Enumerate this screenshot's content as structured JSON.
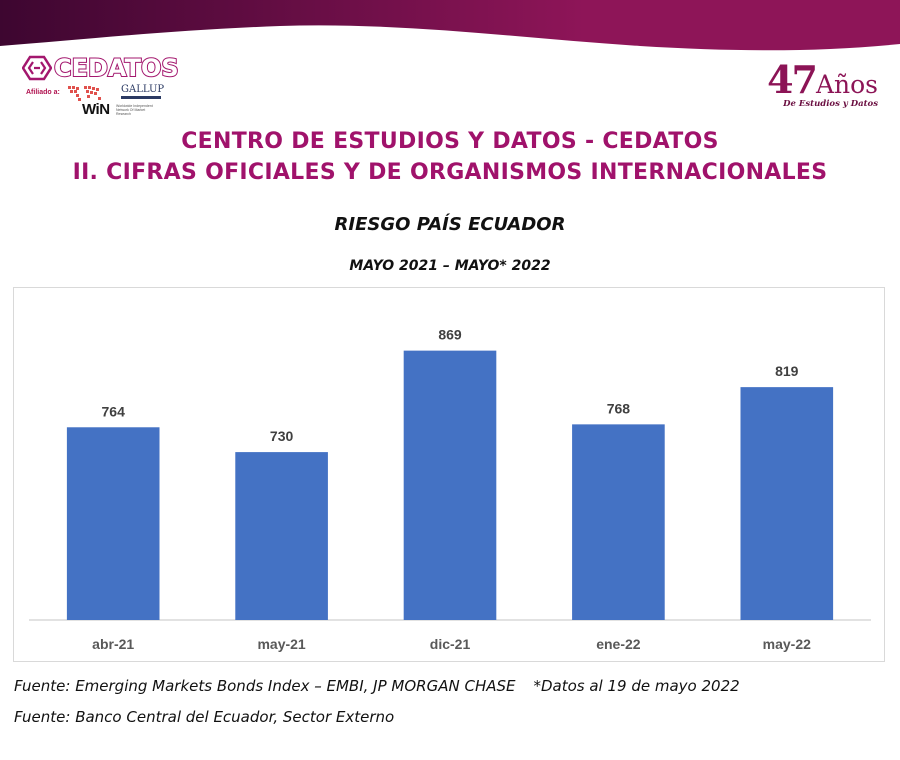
{
  "header": {
    "gradient_start": "#3d0630",
    "gradient_end": "#8e1558",
    "logo": {
      "name": "CEDATOS",
      "affiliate_label": "Afiliado a:",
      "partner_win": "WiN",
      "partner_win_sub": "Worldwide Independent Network Of Market Research",
      "partner_gallup": "GALLUP",
      "partner_gallup_sub": "INTERNATIONAL"
    },
    "anniversary": {
      "number": "47",
      "word": "Años",
      "tagline": "De Estudios y Datos"
    }
  },
  "titles": {
    "line1": "CENTRO DE ESTUDIOS Y DATOS - CEDATOS",
    "line2": "II.  CIFRAS OFICIALES Y DE ORGANISMOS INTERNACIONALES",
    "color": "#a0126b"
  },
  "chart_data": {
    "type": "bar",
    "title": "RIESGO PAÍS ECUADOR",
    "subtitle": "MAYO 2021 – MAYO* 2022",
    "categories": [
      "abr-21",
      "may-21",
      "dic-21",
      "ene-22",
      "may-22"
    ],
    "values": [
      764,
      730,
      869,
      768,
      819
    ],
    "xlabel": "",
    "ylabel": "",
    "ylim": [
      500,
      900
    ],
    "bar_color": "#4472c4",
    "grid": false,
    "legend": "none",
    "data_labels": true
  },
  "footer": {
    "source1": "Fuente: Emerging Markets Bonds Index – EMBI, JP MORGAN CHASE",
    "note": "*Datos al 19 de mayo 2022",
    "source2": "Fuente: Banco Central del Ecuador, Sector Externo"
  }
}
